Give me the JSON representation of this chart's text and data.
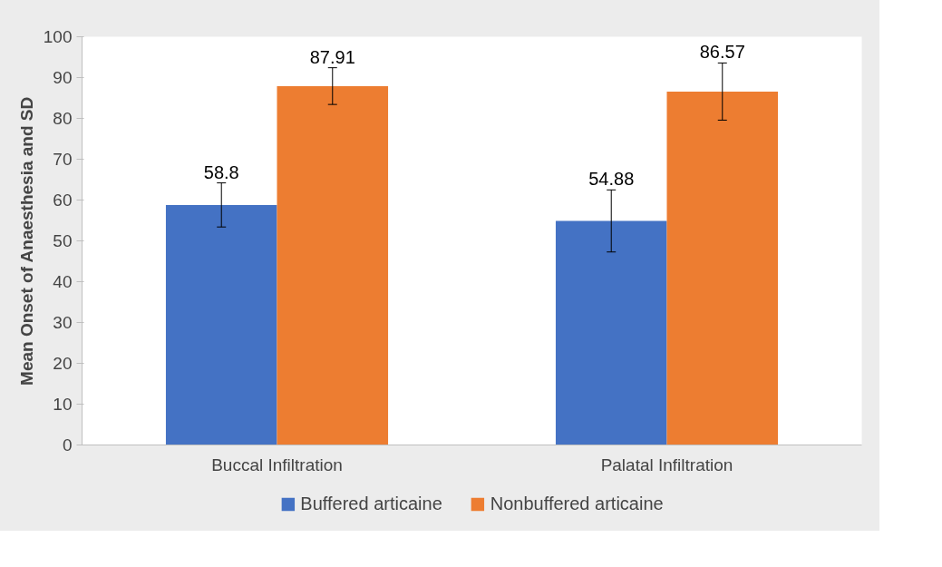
{
  "chart_data": {
    "type": "bar",
    "ylabel": "Mean Onset of Anaesthesia and SD",
    "categories": [
      "Buccal Infiltration",
      "Palatal Infiltration"
    ],
    "series": [
      {
        "name": "Buffered articaine",
        "color": "#4472c4",
        "values": [
          58.8,
          54.88
        ],
        "errors": [
          5.4,
          7.6
        ]
      },
      {
        "name": "Nonbuffered articaine",
        "color": "#ed7d31",
        "values": [
          87.91,
          86.57
        ],
        "errors": [
          4.5,
          7.0
        ]
      }
    ],
    "ylim": [
      0,
      100
    ],
    "yticks": [
      0,
      10,
      20,
      30,
      40,
      50,
      60,
      70,
      80,
      90,
      100
    ],
    "data_labels": true,
    "legend": "bottom",
    "grid": false
  }
}
